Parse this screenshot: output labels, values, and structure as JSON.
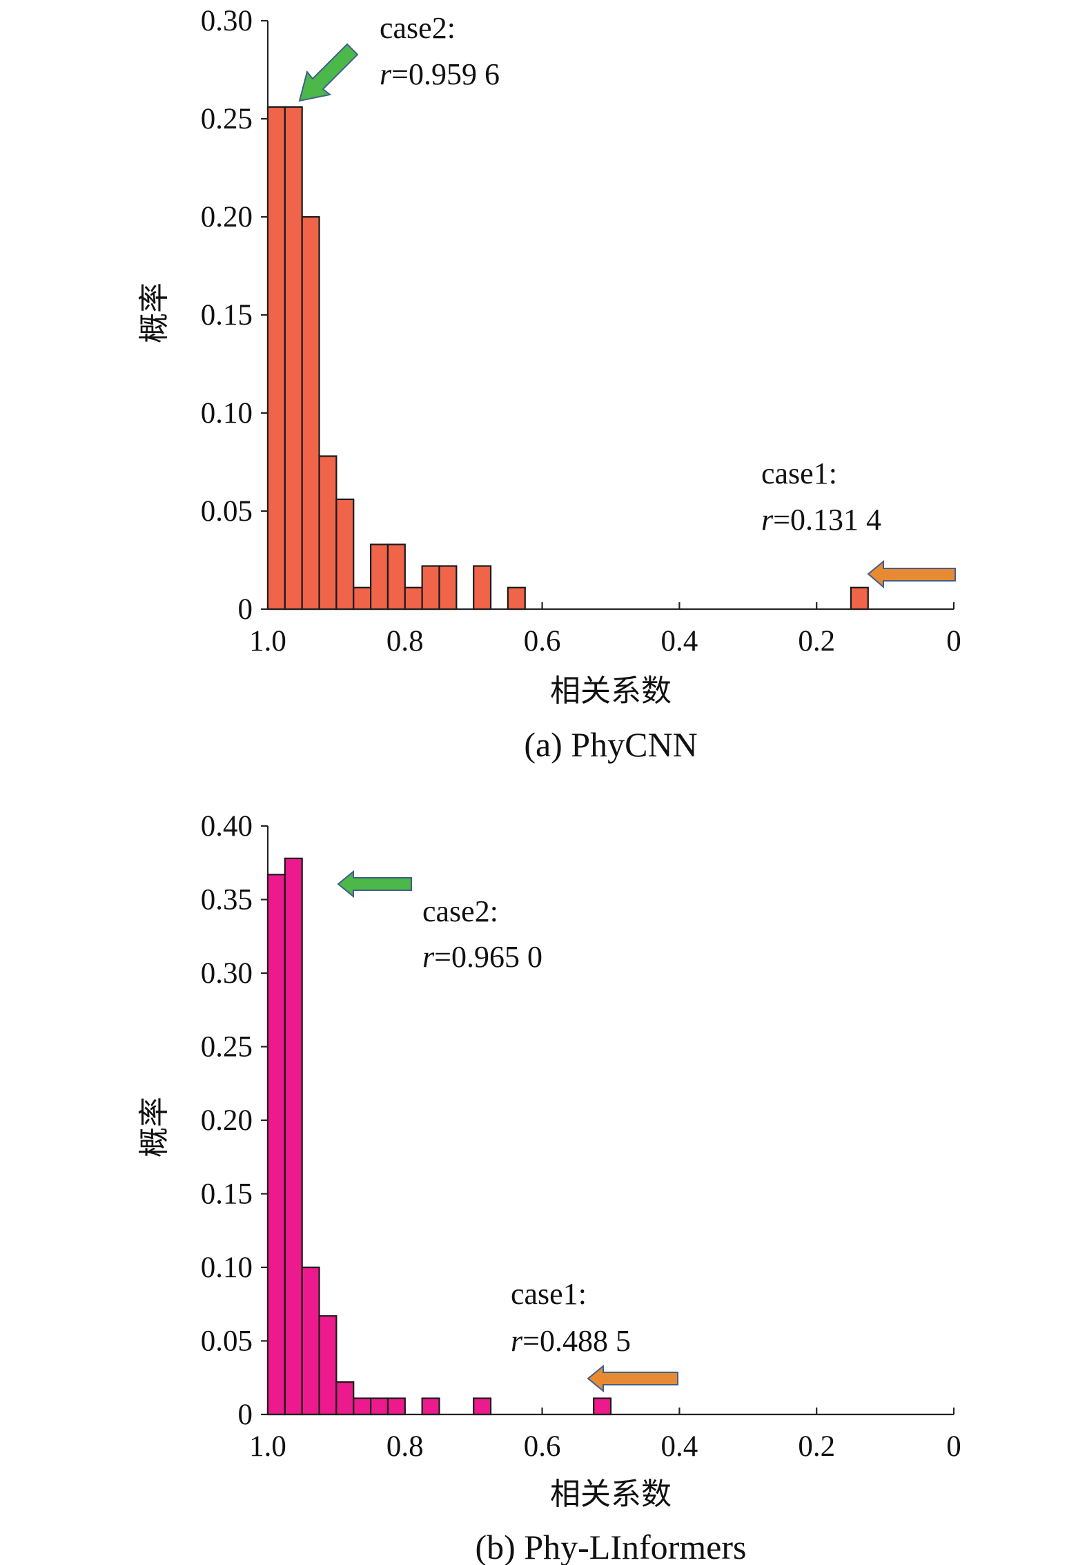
{
  "chart_data": [
    {
      "type": "bar",
      "id": "a",
      "caption": "(a) PhyCNN",
      "xlabel": "相关系数",
      "ylabel": "概率",
      "xlim": [
        1.0,
        0
      ],
      "ylim": [
        0,
        0.3
      ],
      "xticks": [
        "1.0",
        "0.8",
        "0.6",
        "0.4",
        "0.2",
        "0"
      ],
      "yticks": [
        "0",
        "0.05",
        "0.10",
        "0.15",
        "0.20",
        "0.25",
        "0.30"
      ],
      "bar_color": "#F0644A",
      "bin_width": 0.025,
      "bins_start": [
        0.975,
        0.95,
        0.925,
        0.9,
        0.875,
        0.85,
        0.825,
        0.8,
        0.775,
        0.75,
        0.725,
        0.675,
        0.625,
        0.125
      ],
      "values": [
        0.256,
        0.256,
        0.2,
        0.078,
        0.056,
        0.011,
        0.033,
        0.033,
        0.011,
        0.022,
        0.022,
        0.022,
        0.011,
        0.011
      ],
      "annotations": [
        {
          "case": "case2:",
          "r_prefix": "r",
          "r_value": "=0.959 6",
          "arrow_color": "#4CB84A"
        },
        {
          "case": "case1:",
          "r_prefix": "r",
          "r_value": "=0.131 4",
          "arrow_color": "#E88A32"
        }
      ]
    },
    {
      "type": "bar",
      "id": "b",
      "caption": "(b) Phy-LInformers",
      "xlabel": "相关系数",
      "ylabel": "概率",
      "xlim": [
        1.0,
        0
      ],
      "ylim": [
        0,
        0.4
      ],
      "xticks": [
        "1.0",
        "0.8",
        "0.6",
        "0.4",
        "0.2",
        "0"
      ],
      "yticks": [
        "0",
        "0.05",
        "0.10",
        "0.15",
        "0.20",
        "0.25",
        "0.30",
        "0.35",
        "0.40"
      ],
      "bar_color": "#EC1A8C",
      "bin_width": 0.025,
      "bins_start": [
        0.975,
        0.95,
        0.925,
        0.9,
        0.875,
        0.85,
        0.825,
        0.8,
        0.75,
        0.675,
        0.5
      ],
      "values": [
        0.367,
        0.378,
        0.1,
        0.067,
        0.022,
        0.011,
        0.011,
        0.011,
        0.011,
        0.011,
        0.011
      ],
      "annotations": [
        {
          "case": "case2:",
          "r_prefix": "r",
          "r_value": "=0.965 0",
          "arrow_color": "#4CB84A"
        },
        {
          "case": "case1:",
          "r_prefix": "r",
          "r_value": "=0.488 5",
          "arrow_color": "#E88A32"
        }
      ]
    }
  ]
}
